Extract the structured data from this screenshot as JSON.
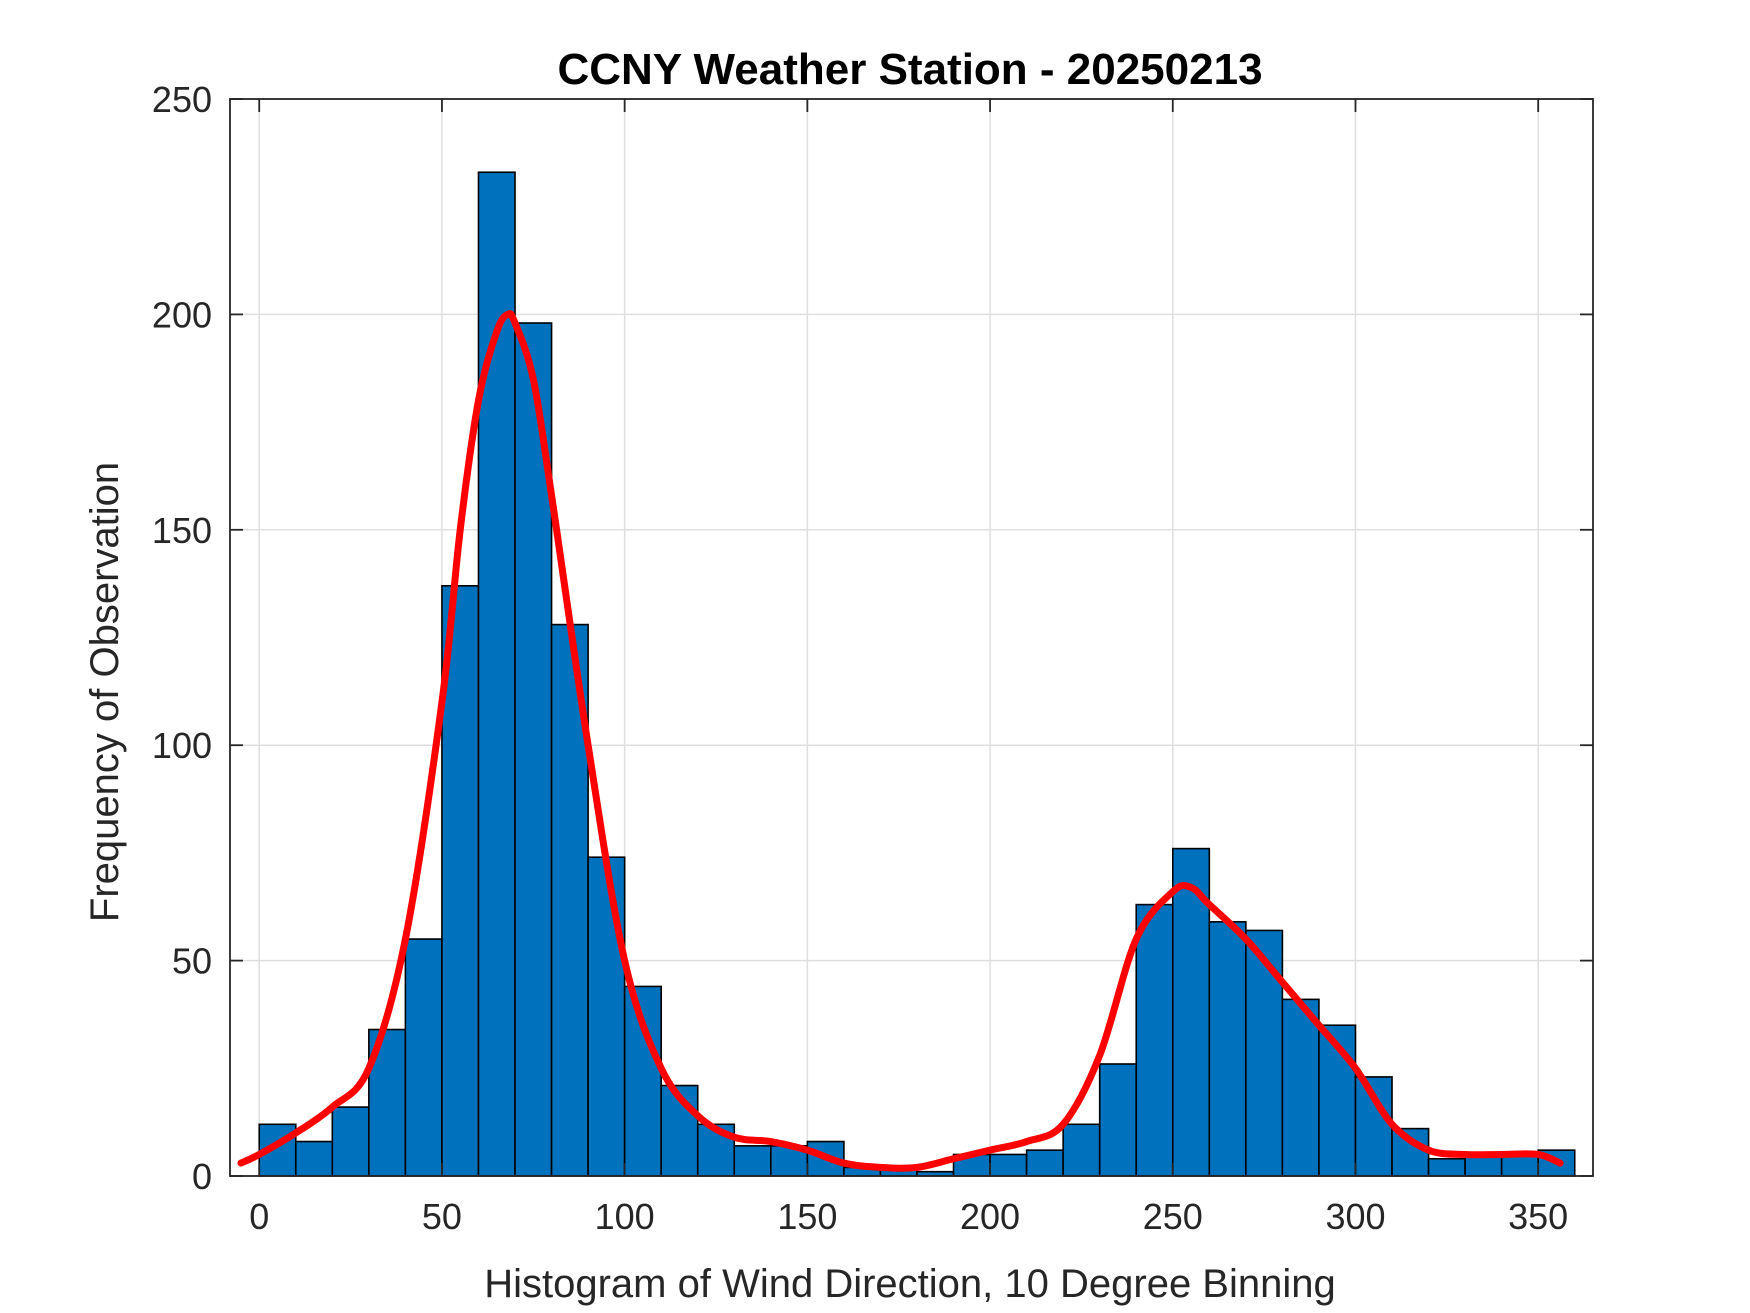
{
  "chart_data": {
    "type": "bar",
    "title": "CCNY Weather Station - 20250213",
    "xlabel": "Histogram of Wind Direction, 10 Degree Binning",
    "ylabel": "Frequency of Observation",
    "xlim": [
      -8,
      365
    ],
    "ylim": [
      0,
      250
    ],
    "xticks": [
      0,
      50,
      100,
      150,
      200,
      250,
      300,
      350
    ],
    "yticks": [
      0,
      50,
      100,
      150,
      200,
      250
    ],
    "grid": true,
    "bin_width": 10,
    "bin_edges": [
      0,
      10,
      20,
      30,
      40,
      50,
      60,
      70,
      80,
      90,
      100,
      110,
      120,
      130,
      140,
      150,
      160,
      170,
      180,
      190,
      200,
      210,
      220,
      230,
      240,
      250,
      260,
      270,
      280,
      290,
      300,
      310,
      320,
      330,
      340,
      350,
      360
    ],
    "values": [
      12,
      8,
      16,
      34,
      55,
      137,
      233,
      198,
      128,
      74,
      44,
      21,
      12,
      7,
      7,
      8,
      2,
      2,
      1,
      5,
      5,
      6,
      12,
      26,
      63,
      76,
      59,
      57,
      41,
      35,
      23,
      11,
      4,
      5,
      5,
      6
    ],
    "series": [
      {
        "type": "line",
        "values_x": [
          -5,
          0,
          10,
          20,
          30,
          40,
          50,
          55,
          60,
          65,
          68,
          70,
          75,
          80,
          90,
          100,
          110,
          120,
          130,
          140,
          150,
          160,
          170,
          180,
          190,
          200,
          210,
          220,
          230,
          240,
          250,
          255,
          260,
          270,
          280,
          290,
          300,
          310,
          320,
          330,
          340,
          350,
          356
        ],
        "values_y": [
          3,
          5,
          10,
          16,
          25,
          55,
          110,
          150,
          180,
          196,
          200,
          198,
          185,
          158,
          100,
          50,
          25,
          14,
          9,
          8,
          6,
          3,
          2,
          2,
          4,
          6,
          8,
          12,
          28,
          55,
          66,
          67,
          63,
          55,
          45,
          35,
          25,
          12,
          6,
          5,
          5,
          5,
          3
        ]
      }
    ],
    "colors": {
      "bars": "#0072BD",
      "bar_edge": "#000000",
      "curve": "#FF0000",
      "grid": "#DFDFDF",
      "axes": "#262626"
    }
  }
}
